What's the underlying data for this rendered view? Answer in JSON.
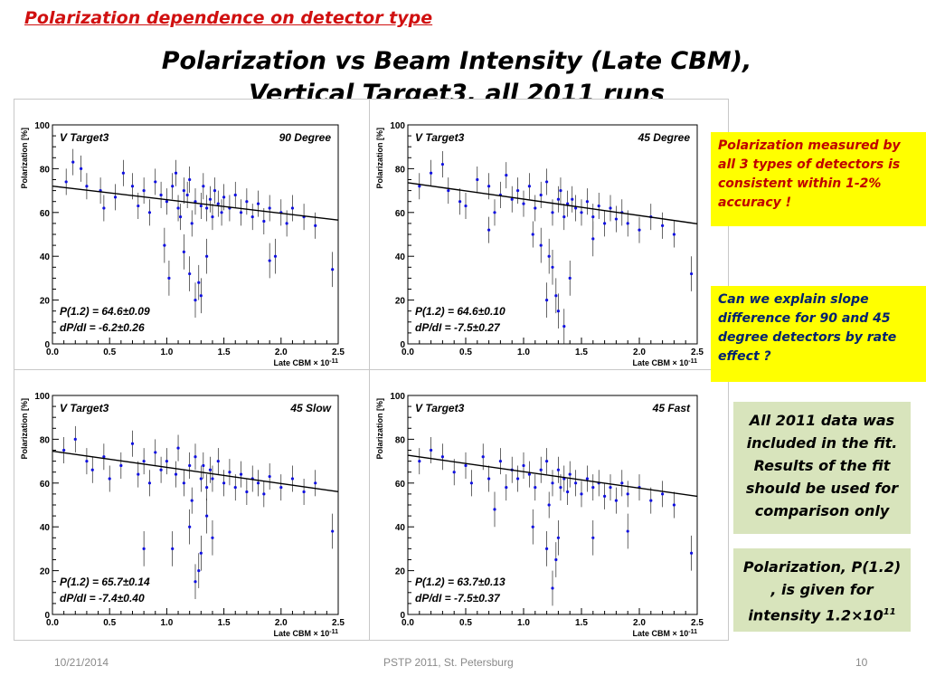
{
  "slide": {
    "topline": "Polarization dependence on detector type",
    "title_line1": "Polarization vs Beam Intensity (Late CBM),",
    "title_line2": "Vertical Target3, all 2011 runs",
    "note1": "Polarization measured by all 3 types of detectors is consistent  within 1-2% accuracy !",
    "note2": "Can we explain slope difference for  90 and 45 degree detectors by rate effect ?",
    "note3": "All 2011 data was included in the fit. Results of the fit should be used for comparison only",
    "note4_text": "Polarization, P(1.2) , is given for intensity 1.2×10",
    "note4_exp": "11",
    "footer_date": "10/21/2014",
    "footer_center": "PSTP 2011, St. Petersburg",
    "footer_page": "10"
  },
  "colors": {
    "marker": "#1010e0",
    "errorbar": "#000000",
    "fit": "#000000",
    "topline": "#d01010"
  },
  "chart_data": [
    {
      "type": "scatter",
      "label_left": "V Target3",
      "label_right": "90 Degree",
      "xlabel": "Late CBM × 10",
      "xlabel_exp": "-11",
      "ylabel": "Polarization [%]",
      "xlim": [
        0,
        2.5
      ],
      "ylim": [
        0,
        100
      ],
      "xticks": [
        "0.0",
        "0.5",
        "1.0",
        "1.5",
        "2.0",
        "2.5"
      ],
      "yticks": [
        "0",
        "20",
        "40",
        "60",
        "80",
        "100"
      ],
      "fit_text1": "P(1.2) = 64.6±0.09",
      "fit_text2": "dP/dI = -6.2±0.26",
      "fit": {
        "p_at_1_2": 64.6,
        "slope": -6.2
      },
      "points": [
        [
          0.12,
          74
        ],
        [
          0.18,
          83
        ],
        [
          0.25,
          80
        ],
        [
          0.3,
          72
        ],
        [
          0.42,
          70
        ],
        [
          0.45,
          62
        ],
        [
          0.55,
          67
        ],
        [
          0.62,
          78
        ],
        [
          0.7,
          72
        ],
        [
          0.75,
          63
        ],
        [
          0.8,
          70
        ],
        [
          0.85,
          60
        ],
        [
          0.9,
          74
        ],
        [
          0.95,
          68
        ],
        [
          1.0,
          65
        ],
        [
          1.02,
          30
        ],
        [
          1.05,
          72
        ],
        [
          1.08,
          78
        ],
        [
          1.1,
          62
        ],
        [
          1.12,
          58
        ],
        [
          1.15,
          70
        ],
        [
          1.18,
          68
        ],
        [
          1.2,
          75
        ],
        [
          1.22,
          55
        ],
        [
          1.25,
          65
        ],
        [
          1.28,
          28
        ],
        [
          1.3,
          63
        ],
        [
          1.32,
          72
        ],
        [
          1.35,
          62
        ],
        [
          1.38,
          66
        ],
        [
          1.4,
          58
        ],
        [
          1.42,
          70
        ],
        [
          1.45,
          64
        ],
        [
          1.48,
          60
        ],
        [
          1.5,
          67
        ],
        [
          1.55,
          62
        ],
        [
          1.6,
          68
        ],
        [
          1.65,
          60
        ],
        [
          1.7,
          65
        ],
        [
          1.75,
          58
        ],
        [
          1.8,
          64
        ],
        [
          1.85,
          56
        ],
        [
          1.9,
          62
        ],
        [
          2.0,
          60
        ],
        [
          2.05,
          55
        ],
        [
          2.1,
          62
        ],
        [
          2.2,
          58
        ],
        [
          2.3,
          54
        ],
        [
          2.45,
          34
        ],
        [
          1.2,
          32
        ],
        [
          1.25,
          20
        ],
        [
          1.3,
          22
        ],
        [
          1.35,
          40
        ],
        [
          1.15,
          42
        ],
        [
          0.98,
          45
        ],
        [
          1.9,
          38
        ],
        [
          1.95,
          40
        ]
      ]
    },
    {
      "type": "scatter",
      "label_left": "V Target3",
      "label_right": "45 Degree",
      "xlabel": "Late CBM × 10",
      "xlabel_exp": "-11",
      "ylabel": "Polarization [%]",
      "xlim": [
        0,
        2.5
      ],
      "ylim": [
        0,
        100
      ],
      "xticks": [
        "0.0",
        "0.5",
        "1.0",
        "1.5",
        "2.0",
        "2.5"
      ],
      "yticks": [
        "0",
        "20",
        "40",
        "60",
        "80",
        "100"
      ],
      "fit_text1": "P(1.2) = 64.6±0.10",
      "fit_text2": "dP/dI = -7.5±0.27",
      "fit": {
        "p_at_1_2": 64.6,
        "slope": -7.5
      },
      "points": [
        [
          0.1,
          72
        ],
        [
          0.2,
          78
        ],
        [
          0.3,
          82
        ],
        [
          0.35,
          70
        ],
        [
          0.45,
          65
        ],
        [
          0.5,
          63
        ],
        [
          0.6,
          75
        ],
        [
          0.7,
          72
        ],
        [
          0.75,
          60
        ],
        [
          0.8,
          68
        ],
        [
          0.85,
          77
        ],
        [
          0.9,
          66
        ],
        [
          0.95,
          70
        ],
        [
          1.0,
          64
        ],
        [
          1.05,
          72
        ],
        [
          1.08,
          50
        ],
        [
          1.1,
          62
        ],
        [
          1.15,
          68
        ],
        [
          1.2,
          74
        ],
        [
          1.22,
          40
        ],
        [
          1.25,
          60
        ],
        [
          1.28,
          22
        ],
        [
          1.3,
          66
        ],
        [
          1.32,
          70
        ],
        [
          1.35,
          58
        ],
        [
          1.38,
          64
        ],
        [
          1.4,
          30
        ],
        [
          1.42,
          66
        ],
        [
          1.45,
          62
        ],
        [
          1.5,
          60
        ],
        [
          1.55,
          65
        ],
        [
          1.6,
          58
        ],
        [
          1.65,
          63
        ],
        [
          1.7,
          55
        ],
        [
          1.75,
          62
        ],
        [
          1.8,
          57
        ],
        [
          1.85,
          60
        ],
        [
          1.9,
          55
        ],
        [
          2.0,
          52
        ],
        [
          2.1,
          58
        ],
        [
          2.2,
          54
        ],
        [
          2.3,
          50
        ],
        [
          2.45,
          32
        ],
        [
          1.2,
          20
        ],
        [
          1.25,
          35
        ],
        [
          1.35,
          8
        ],
        [
          1.3,
          15
        ],
        [
          1.15,
          45
        ],
        [
          0.7,
          52
        ],
        [
          1.6,
          48
        ]
      ]
    },
    {
      "type": "scatter",
      "label_left": "V Target3",
      "label_right": "45 Slow",
      "xlabel": "Late CBM × 10",
      "xlabel_exp": "-11",
      "ylabel": "Polarization [%]",
      "xlim": [
        0,
        2.5
      ],
      "ylim": [
        0,
        100
      ],
      "xticks": [
        "0.0",
        "0.5",
        "1.0",
        "1.5",
        "2.0",
        "2.5"
      ],
      "yticks": [
        "0",
        "20",
        "40",
        "60",
        "80",
        "100"
      ],
      "fit_text1": "P(1.2) = 65.7±0.14",
      "fit_text2": "dP/dI = -7.4±0.40",
      "fit": {
        "p_at_1_2": 65.7,
        "slope": -7.4
      },
      "points": [
        [
          0.1,
          75
        ],
        [
          0.2,
          80
        ],
        [
          0.3,
          70
        ],
        [
          0.35,
          66
        ],
        [
          0.45,
          72
        ],
        [
          0.5,
          62
        ],
        [
          0.6,
          68
        ],
        [
          0.7,
          78
        ],
        [
          0.75,
          64
        ],
        [
          0.8,
          70
        ],
        [
          0.85,
          60
        ],
        [
          0.9,
          74
        ],
        [
          0.95,
          66
        ],
        [
          1.0,
          70
        ],
        [
          1.05,
          30
        ],
        [
          1.08,
          64
        ],
        [
          1.1,
          76
        ],
        [
          1.15,
          60
        ],
        [
          1.2,
          68
        ],
        [
          1.22,
          52
        ],
        [
          1.25,
          72
        ],
        [
          1.28,
          20
        ],
        [
          1.3,
          62
        ],
        [
          1.32,
          68
        ],
        [
          1.35,
          58
        ],
        [
          1.38,
          66
        ],
        [
          1.4,
          62
        ],
        [
          1.45,
          70
        ],
        [
          1.5,
          60
        ],
        [
          1.55,
          65
        ],
        [
          1.6,
          58
        ],
        [
          1.65,
          64
        ],
        [
          1.7,
          56
        ],
        [
          1.75,
          62
        ],
        [
          1.8,
          60
        ],
        [
          1.85,
          55
        ],
        [
          1.9,
          63
        ],
        [
          2.0,
          58
        ],
        [
          2.1,
          62
        ],
        [
          2.2,
          56
        ],
        [
          2.3,
          60
        ],
        [
          2.45,
          38
        ],
        [
          1.25,
          15
        ],
        [
          1.3,
          28
        ],
        [
          1.2,
          40
        ],
        [
          1.35,
          45
        ],
        [
          0.8,
          30
        ],
        [
          1.4,
          35
        ]
      ]
    },
    {
      "type": "scatter",
      "label_left": "V Target3",
      "label_right": "45 Fast",
      "xlabel": "Late CBM × 10",
      "xlabel_exp": "-11",
      "ylabel": "Polarization [%]",
      "xlim": [
        0,
        2.5
      ],
      "ylim": [
        0,
        100
      ],
      "xticks": [
        "0.0",
        "0.5",
        "1.0",
        "1.5",
        "2.0",
        "2.5"
      ],
      "yticks": [
        "0",
        "20",
        "40",
        "60",
        "80",
        "100"
      ],
      "fit_text1": "P(1.2) = 63.7±0.13",
      "fit_text2": "dP/dI = -7.5±0.37",
      "fit": {
        "p_at_1_2": 63.7,
        "slope": -7.5
      },
      "points": [
        [
          0.1,
          70
        ],
        [
          0.2,
          75
        ],
        [
          0.3,
          72
        ],
        [
          0.4,
          65
        ],
        [
          0.5,
          68
        ],
        [
          0.55,
          60
        ],
        [
          0.65,
          72
        ],
        [
          0.7,
          62
        ],
        [
          0.8,
          70
        ],
        [
          0.85,
          58
        ],
        [
          0.9,
          66
        ],
        [
          0.95,
          62
        ],
        [
          1.0,
          68
        ],
        [
          1.05,
          64
        ],
        [
          1.08,
          40
        ],
        [
          1.1,
          58
        ],
        [
          1.15,
          66
        ],
        [
          1.2,
          70
        ],
        [
          1.22,
          50
        ],
        [
          1.25,
          60
        ],
        [
          1.28,
          25
        ],
        [
          1.3,
          66
        ],
        [
          1.32,
          58
        ],
        [
          1.35,
          62
        ],
        [
          1.38,
          56
        ],
        [
          1.4,
          64
        ],
        [
          1.45,
          60
        ],
        [
          1.5,
          55
        ],
        [
          1.55,
          62
        ],
        [
          1.6,
          58
        ],
        [
          1.65,
          60
        ],
        [
          1.7,
          54
        ],
        [
          1.75,
          58
        ],
        [
          1.8,
          52
        ],
        [
          1.85,
          60
        ],
        [
          1.9,
          55
        ],
        [
          2.0,
          58
        ],
        [
          2.1,
          52
        ],
        [
          2.2,
          55
        ],
        [
          2.3,
          50
        ],
        [
          2.45,
          28
        ],
        [
          1.25,
          12
        ],
        [
          1.3,
          35
        ],
        [
          1.2,
          30
        ],
        [
          1.6,
          35
        ],
        [
          0.75,
          48
        ],
        [
          1.9,
          38
        ]
      ]
    }
  ]
}
